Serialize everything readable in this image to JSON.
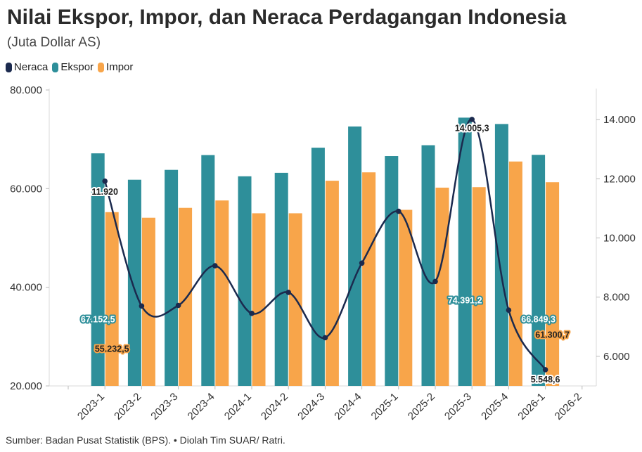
{
  "header": {
    "title": "Nilai Ekspor, Impor, dan Neraca Perdagangan Indonesia",
    "subtitle": "(Juta Dollar AS)"
  },
  "legend": [
    {
      "label": "Neraca",
      "color": "#1b2a4e"
    },
    {
      "label": "Ekspor",
      "color": "#2e8f9a"
    },
    {
      "label": "Impor",
      "color": "#f8a54a"
    }
  ],
  "footer": {
    "source": "Sumber: Badan Pusat Statistik (BPS). • Diolah Tim SUAR/ Ratri."
  },
  "chart_data": {
    "type": "bar",
    "categories": [
      "2023-1",
      "2023-2",
      "2023-3",
      "2023-4",
      "2024-1",
      "2024-2",
      "2024-3",
      "2024-4",
      "2025-1",
      "2025-2",
      "2025-3",
      "2025-4",
      "2026-1",
      "2026-2"
    ],
    "series": [
      {
        "name": "Ekspor",
        "type": "bar",
        "axis": "left",
        "color": "#2e8f9a",
        "values": [
          67152.5,
          61800,
          63800,
          66800,
          62500,
          63200,
          68300,
          72600,
          66600,
          68800,
          74391.2,
          73100,
          66849.3,
          null
        ]
      },
      {
        "name": "Impor",
        "type": "bar",
        "axis": "left",
        "color": "#f8a54a",
        "values": [
          55232.5,
          54100,
          56100,
          57600,
          55000,
          55000,
          61600,
          63300,
          55700,
          60200,
          60300,
          65500,
          61300.7,
          null
        ]
      },
      {
        "name": "Neraca",
        "type": "line",
        "axis": "right",
        "color": "#1b2a4e",
        "values": [
          11920,
          7700,
          7720,
          9060,
          7450,
          8160,
          6630,
          9150,
          10900,
          8530,
          14005.3,
          7560,
          5548.6,
          null
        ]
      }
    ],
    "data_labels": [
      {
        "series": "Ekspor",
        "index": 0,
        "text": "67.152,5",
        "anchor_value": 33500
      },
      {
        "series": "Impor",
        "index": 0,
        "text": "55.232,5",
        "anchor_value": 27500
      },
      {
        "series": "Neraca",
        "index": 0,
        "text": "11.920",
        "anchor_value": 11550
      },
      {
        "series": "Neraca",
        "index": 10,
        "text": "14.005,3",
        "anchor_value": 13700
      },
      {
        "series": "Ekspor",
        "index": 10,
        "text": "74.391,2",
        "anchor_value": 37300
      },
      {
        "series": "Ekspor",
        "index": 12,
        "text": "66.849,3",
        "anchor_value": 33500
      },
      {
        "series": "Impor",
        "index": 12,
        "text": "61.300,7",
        "anchor_value": 30300
      },
      {
        "series": "Neraca",
        "index": 12,
        "text": "5.548,6",
        "anchor_value": 5210
      }
    ],
    "left_axis": {
      "min": 20000,
      "max": 80000,
      "ticks": [
        20000,
        40000,
        60000,
        80000
      ],
      "tick_labels": [
        "20.000",
        "40.000",
        "60.000",
        "80.000"
      ]
    },
    "right_axis": {
      "min": 5000,
      "max": 15000,
      "ticks": [
        6000,
        8000,
        10000,
        12000,
        14000
      ],
      "tick_labels": [
        "6.000",
        "8.000",
        "10.000",
        "12.000",
        "14.000"
      ]
    },
    "grid": false,
    "legend_position": "top-left"
  }
}
